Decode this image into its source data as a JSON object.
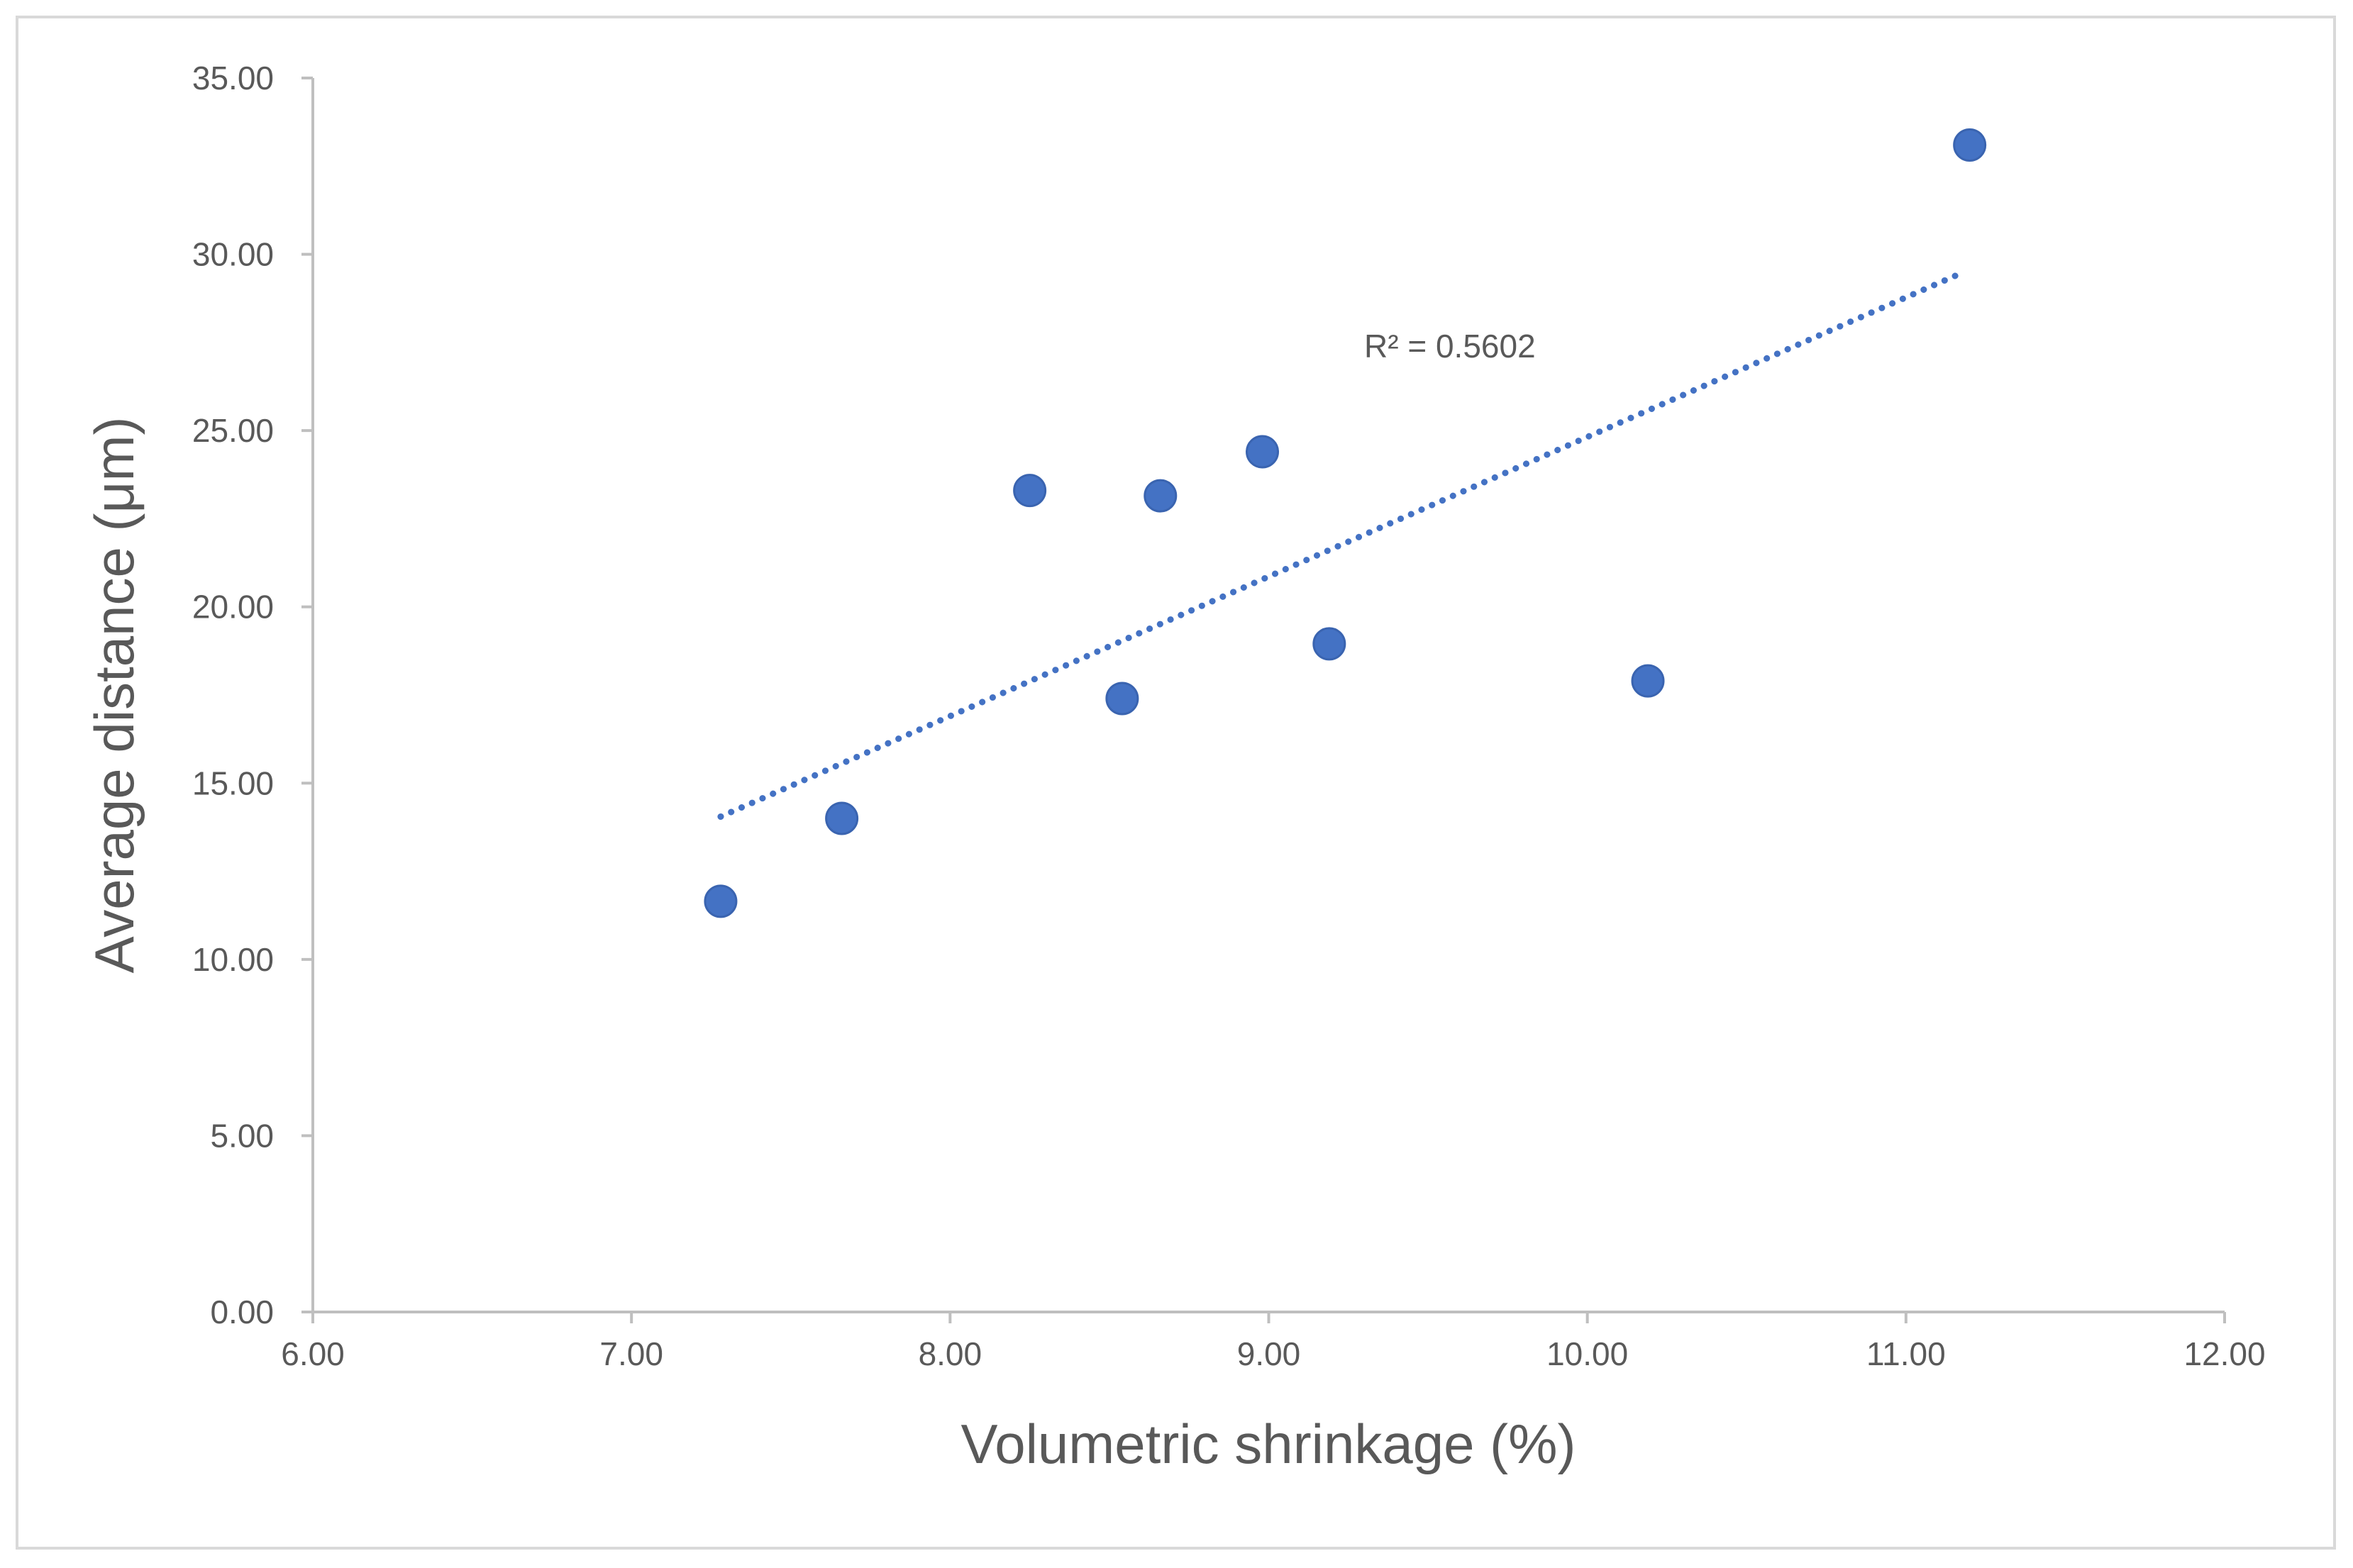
{
  "chart_data": {
    "type": "scatter",
    "title": "",
    "xlabel": "Volumetric shrinkage (%)",
    "ylabel": "Average distance (μm)",
    "xlim": [
      6.0,
      12.0
    ],
    "ylim": [
      0.0,
      35.0
    ],
    "x_ticks": [
      "6.00",
      "7.00",
      "8.00",
      "9.00",
      "10.00",
      "11.00",
      "12.00"
    ],
    "y_ticks": [
      "0.00",
      "5.00",
      "10.00",
      "15.00",
      "20.00",
      "25.00",
      "30.00",
      "35.00"
    ],
    "grid": false,
    "legend": "none",
    "series": [
      {
        "name": "Average distance",
        "color": "#4472c4",
        "x": [
          7.28,
          7.66,
          8.25,
          8.54,
          8.66,
          8.98,
          9.19,
          10.19,
          11.2
        ],
        "y": [
          11.65,
          14.0,
          23.3,
          17.4,
          23.15,
          24.4,
          18.95,
          17.9,
          33.1
        ]
      }
    ],
    "trendline": {
      "type": "linear",
      "style": "dotted",
      "color": "#4472c4",
      "x_start": 7.28,
      "x_end": 11.17,
      "y_start": 14.05,
      "y_end": 29.45,
      "annotation": "R² = 0.5602"
    }
  }
}
